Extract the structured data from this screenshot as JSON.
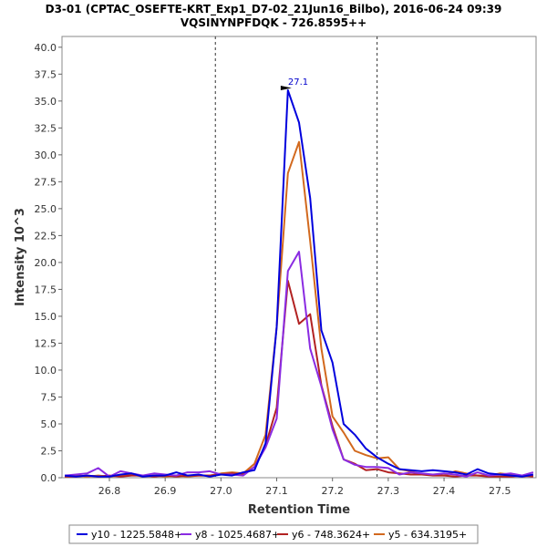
{
  "chart_data": {
    "type": "line",
    "title": "D3-01 (CPTAC_OSEFTE-KRT_Exp1_D7-02_21Jun16_Bilbo), 2016-06-24 09:39",
    "subtitle": "VQSINYNPFDQK - 726.8595++",
    "xlabel": "Retention Time",
    "ylabel": "Intensity 10^3",
    "xlim": [
      26.715,
      27.565
    ],
    "ylim": [
      0,
      41.0
    ],
    "x_ticks": [
      "26.8",
      "26.9",
      "27.0",
      "27.1",
      "27.2",
      "27.3",
      "27.4",
      "27.5"
    ],
    "y_ticks": [
      "0.0",
      "2.5",
      "5.0",
      "7.5",
      "10.0",
      "12.5",
      "15.0",
      "17.5",
      "20.0",
      "22.5",
      "25.0",
      "27.5",
      "30.0",
      "32.5",
      "35.0",
      "37.5",
      "40.0"
    ],
    "grid": false,
    "legend_position": "bottom",
    "vlines": [
      26.99,
      27.28
    ],
    "peak_annotation": {
      "x": 27.13,
      "y": 36.0,
      "label": "27.1",
      "color": "#0000cc"
    },
    "x": [
      26.72,
      26.74,
      26.76,
      26.78,
      26.8,
      26.82,
      26.84,
      26.86,
      26.88,
      26.9,
      26.92,
      26.94,
      26.96,
      26.98,
      27.0,
      27.02,
      27.04,
      27.06,
      27.08,
      27.1,
      27.12,
      27.14,
      27.16,
      27.18,
      27.2,
      27.22,
      27.24,
      27.26,
      27.28,
      27.3,
      27.32,
      27.34,
      27.36,
      27.38,
      27.4,
      27.42,
      27.44,
      27.46,
      27.48,
      27.5,
      27.52,
      27.54,
      27.56
    ],
    "series": [
      {
        "name": "y10 - 1225.5848+",
        "color": "#0000dd",
        "values": [
          0.2,
          0.1,
          0.2,
          0.1,
          0.1,
          0.3,
          0.4,
          0.1,
          0.2,
          0.2,
          0.5,
          0.2,
          0.3,
          0.1,
          0.3,
          0.2,
          0.5,
          0.7,
          3.2,
          14.0,
          36.0,
          33.0,
          26.0,
          13.7,
          10.7,
          5.0,
          4.0,
          2.7,
          1.9,
          1.3,
          0.8,
          0.7,
          0.6,
          0.7,
          0.6,
          0.5,
          0.3,
          0.8,
          0.4,
          0.3,
          0.2,
          0.1,
          0.3
        ]
      },
      {
        "name": "y8 - 1025.4687+",
        "color": "#8a2be2",
        "values": [
          0.2,
          0.3,
          0.4,
          0.9,
          0.1,
          0.6,
          0.4,
          0.2,
          0.4,
          0.3,
          0.2,
          0.5,
          0.5,
          0.6,
          0.3,
          0.3,
          0.2,
          1.0,
          2.8,
          5.5,
          19.2,
          21.0,
          12.0,
          8.5,
          4.5,
          1.7,
          1.2,
          1.0,
          1.0,
          0.9,
          0.3,
          0.5,
          0.4,
          0.3,
          0.4,
          0.3,
          0.1,
          0.5,
          0.2,
          0.3,
          0.4,
          0.2,
          0.5
        ]
      },
      {
        "name": "y6 - 748.3624+",
        "color": "#b22222",
        "values": [
          0.1,
          0.1,
          0.2,
          0.1,
          0.2,
          0.1,
          0.2,
          0.2,
          0.1,
          0.2,
          0.1,
          0.2,
          0.2,
          0.2,
          0.3,
          0.4,
          0.3,
          1.0,
          3.0,
          6.5,
          18.3,
          14.3,
          15.2,
          8.6,
          4.8,
          1.7,
          1.3,
          0.7,
          0.8,
          0.5,
          0.4,
          0.3,
          0.3,
          0.2,
          0.2,
          0.1,
          0.2,
          0.2,
          0.1,
          0.1,
          0.1,
          0.2,
          0.1
        ]
      },
      {
        "name": "y5 - 634.3195+",
        "color": "#d2691e",
        "values": [
          0.1,
          0.2,
          0.1,
          0.2,
          0.1,
          0.2,
          0.3,
          0.1,
          0.2,
          0.1,
          0.2,
          0.1,
          0.2,
          0.2,
          0.4,
          0.5,
          0.4,
          1.3,
          4.0,
          14.0,
          28.3,
          31.2,
          22.0,
          12.0,
          5.7,
          4.2,
          2.5,
          2.1,
          1.8,
          1.9,
          0.8,
          0.6,
          0.3,
          0.3,
          0.2,
          0.6,
          0.4,
          0.2,
          0.2,
          0.4,
          0.3,
          0.1,
          0.2
        ]
      }
    ]
  }
}
